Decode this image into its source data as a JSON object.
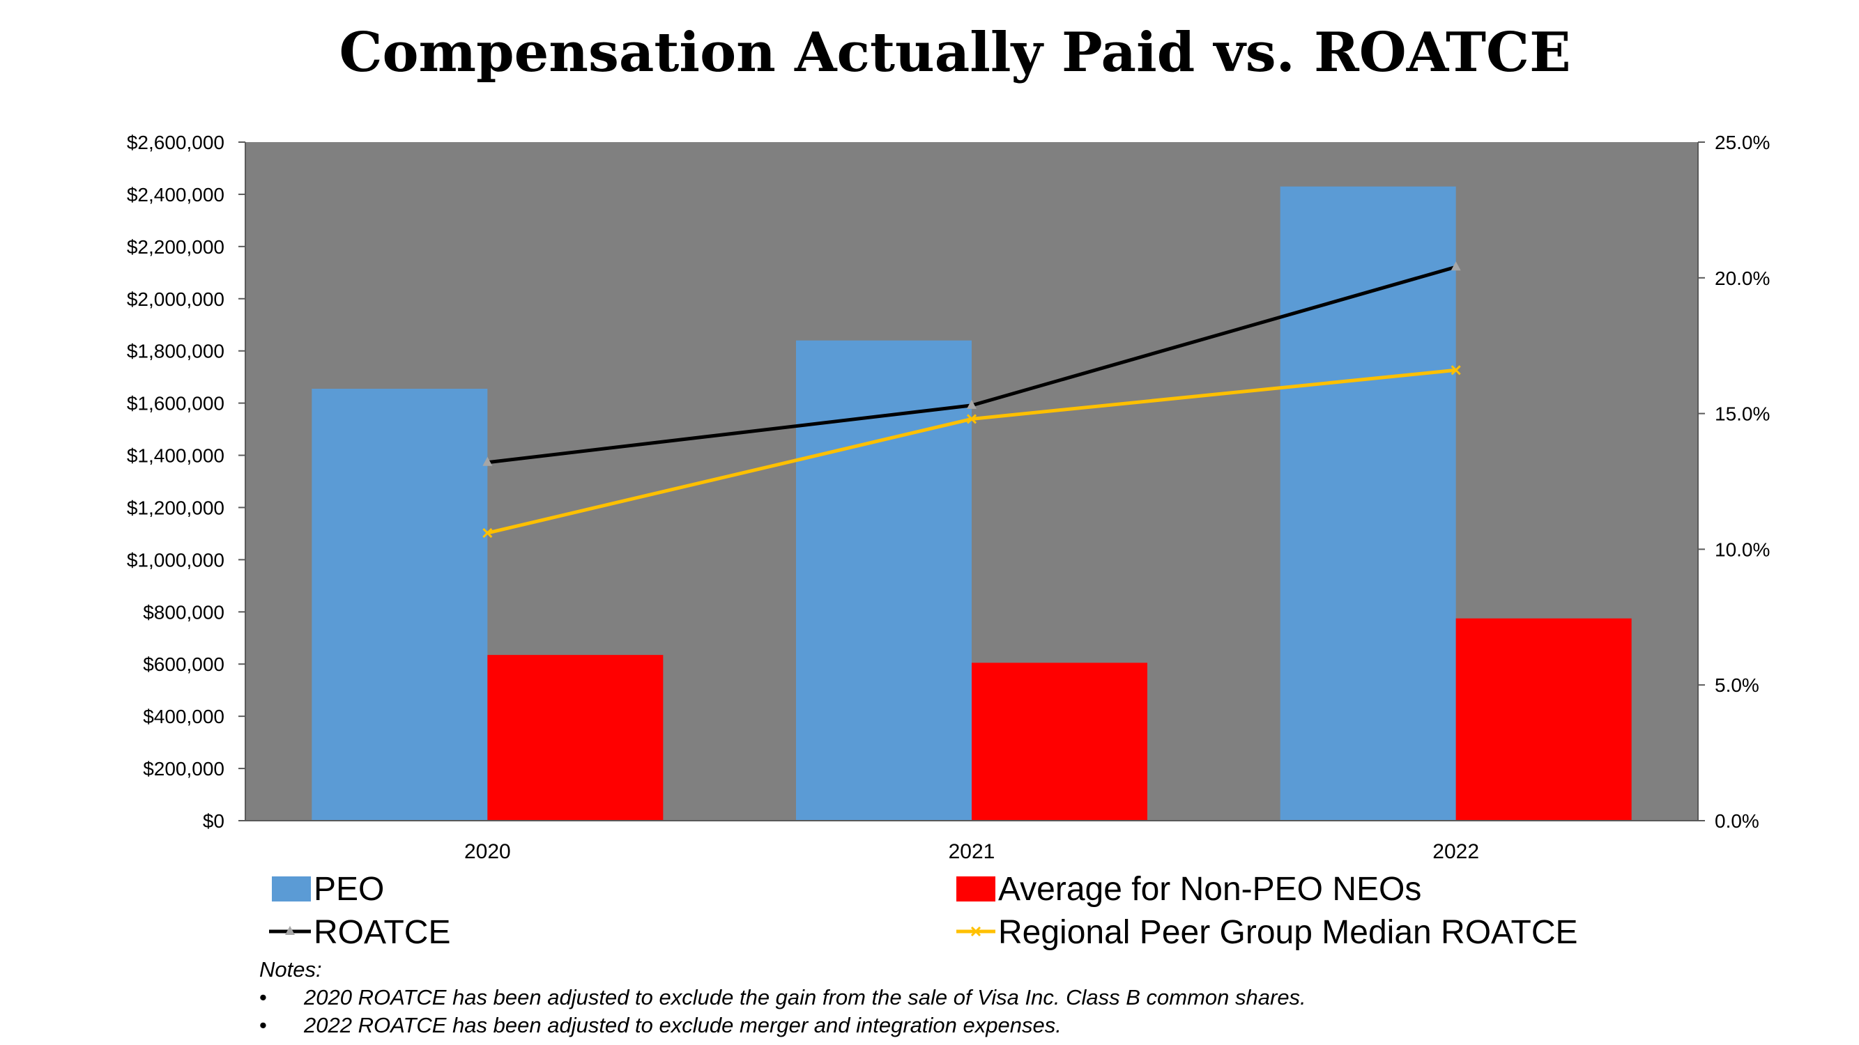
{
  "chart_data": {
    "type": "bar",
    "title": "Compensation Actually Paid vs. ROATCE",
    "categories": [
      "2020",
      "2021",
      "2022"
    ],
    "series": [
      {
        "name": "PEO",
        "kind": "bar",
        "axis": "left",
        "color": "#5B9BD5",
        "values": [
          1655000,
          1840000,
          2430000
        ]
      },
      {
        "name": "Average for Non-PEO NEOs",
        "kind": "bar",
        "axis": "left",
        "color": "#FF0000",
        "values": [
          635000,
          605000,
          775000
        ]
      },
      {
        "name": "ROATCE",
        "kind": "line",
        "axis": "right",
        "color": "#000000",
        "marker": "triangle",
        "values": [
          13.2,
          15.3,
          20.4
        ]
      },
      {
        "name": "Regional Peer Group Median ROATCE",
        "kind": "line",
        "axis": "right",
        "color": "#FFC000",
        "marker": "x",
        "values": [
          10.6,
          14.8,
          16.6
        ]
      }
    ],
    "y_left": {
      "min": 0,
      "max": 2600000,
      "step": 200000,
      "ticks": [
        "$0",
        "$200,000",
        "$400,000",
        "$600,000",
        "$800,000",
        "$1,000,000",
        "$1,200,000",
        "$1,400,000",
        "$1,600,000",
        "$1,800,000",
        "$2,000,000",
        "$2,200,000",
        "$2,400,000",
        "$2,600,000"
      ]
    },
    "y_right": {
      "min": 0,
      "max": 25,
      "step": 5,
      "ticks": [
        "0.0%",
        "5.0%",
        "10.0%",
        "15.0%",
        "20.0%",
        "25.0%"
      ]
    },
    "plot_background": "#808080",
    "legend_position": "bottom"
  },
  "notes": {
    "heading": "Notes:",
    "bullet": "•",
    "items": [
      "2020 ROATCE has been adjusted to exclude the gain from the sale of Visa Inc. Class B common shares.",
      "2022 ROATCE has been adjusted to exclude merger and integration expenses."
    ]
  }
}
